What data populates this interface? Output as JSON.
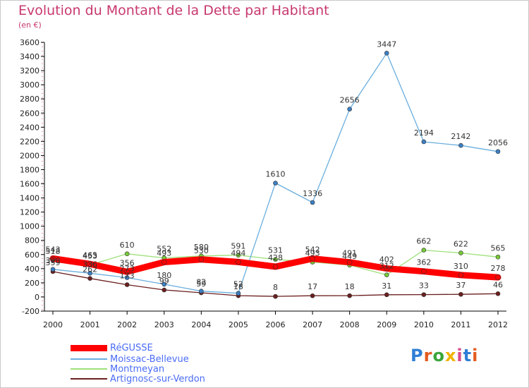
{
  "header": {
    "title": "Evolution du Montant de la Dette par Habitant",
    "unit": "(en €)"
  },
  "logo": {
    "text": "Proxiti",
    "colors": [
      "#2f7fd6",
      "#e35b1e",
      "#3aa63a",
      "#f0b400",
      "#d94a8b",
      "#2f7fd6",
      "#e35b1e"
    ]
  },
  "chart_data": {
    "type": "line",
    "x": [
      "2000",
      "2001",
      "2002",
      "2003",
      "2004",
      "2005",
      "2006",
      "2007",
      "2008",
      "2009",
      "2010",
      "2011",
      "2012"
    ],
    "ylim": [
      -200,
      3600
    ],
    "yticks": [
      -200,
      0,
      200,
      400,
      600,
      800,
      1000,
      1200,
      1400,
      1600,
      1800,
      2000,
      2200,
      2400,
      2600,
      2800,
      3000,
      3200,
      3400,
      3600
    ],
    "grid": false,
    "legend_position": "bottom-left",
    "series": [
      {
        "name": "Artignosc-sur-Verdon",
        "color": "#6b1f1f",
        "marker": "#6b1f1f",
        "values": [
          359,
          262,
          173,
          99,
          59,
          18,
          8,
          17,
          18,
          31,
          33,
          37,
          46
        ],
        "labels": [
          "359",
          "262",
          "173",
          "99",
          "59",
          "18",
          "8",
          "17",
          "18",
          "31",
          "33",
          "37",
          "46"
        ]
      },
      {
        "name": "Montmeyan",
        "color": "#9ee07a",
        "marker": "#78c838",
        "values": [
          518,
          453,
          610,
          552,
          580,
          591,
          531,
          493,
          449,
          312,
          662,
          622,
          565
        ],
        "labels": [
          "518",
          "453",
          "610",
          "552",
          "580",
          "591",
          "531",
          "493",
          "449",
          "312",
          "662",
          "622",
          "565"
        ]
      },
      {
        "name": "Moissac-Bellevue",
        "color": "#6aaede",
        "marker": "#3d7fc4",
        "values": [
          390,
          336,
          273,
          180,
          82,
          52,
          1610,
          1336,
          2656,
          3447,
          2194,
          2142,
          2056
        ],
        "labels": [
          "390",
          "336",
          "273",
          "180",
          "82",
          "52",
          "1610",
          "1336",
          "2656",
          "3447",
          "2194",
          "2142",
          "2056"
        ]
      },
      {
        "name": "RéGUSSE",
        "color": "#ff0000",
        "marker": "#ff0000",
        "values": [
          543,
          465,
          356,
          493,
          530,
          494,
          428,
          542,
          491,
          402,
          362,
          310,
          278
        ],
        "labels": [
          "543",
          "465",
          "356",
          "493",
          "530",
          "494",
          "428",
          "542",
          "491",
          "402",
          "362",
          "310",
          "278"
        ]
      }
    ]
  },
  "legend": {
    "items": [
      {
        "label": "RéGUSSE",
        "color": "#ff0000"
      },
      {
        "label": "Moissac-Bellevue",
        "color": "#6aaede"
      },
      {
        "label": "Montmeyan",
        "color": "#9ee07a"
      },
      {
        "label": "Artignosc-sur-Verdon",
        "color": "#6b1f1f"
      }
    ]
  }
}
